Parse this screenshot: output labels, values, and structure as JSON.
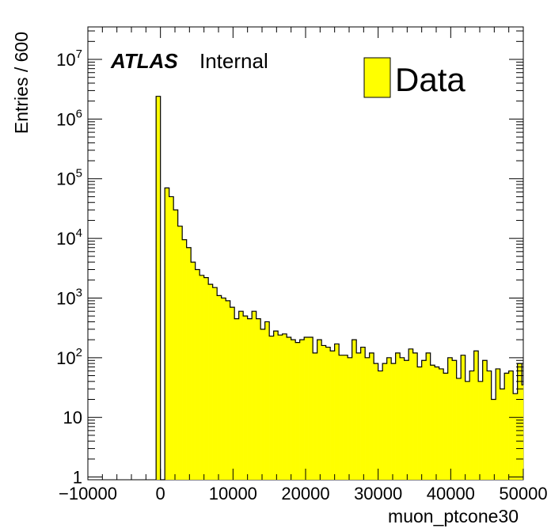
{
  "chart_data": {
    "type": "histogram",
    "xlabel": "muon_ptcone30",
    "ylabel": "Entries / 600",
    "xlim": [
      -10000,
      50000
    ],
    "ylim": [
      0.9,
      35000000
    ],
    "yscale": "log",
    "bin_width": 600,
    "fill_color": "#ffff00",
    "line_color": "#000000",
    "grid": false,
    "legend_position": "top-right",
    "x_ticks": [
      -10000,
      0,
      10000,
      20000,
      30000,
      40000,
      50000
    ],
    "x_tick_labels": [
      "−10000",
      "0",
      "10000",
      "20000",
      "30000",
      "40000",
      "50000"
    ],
    "y_ticks": [
      {
        "value": 1,
        "base": "1",
        "exp": ""
      },
      {
        "value": 10,
        "base": "10",
        "exp": ""
      },
      {
        "value": 100,
        "base": "10",
        "exp": "2"
      },
      {
        "value": 1000,
        "base": "10",
        "exp": "3"
      },
      {
        "value": 10000,
        "base": "10",
        "exp": "4"
      },
      {
        "value": 100000,
        "base": "10",
        "exp": "5"
      },
      {
        "value": 1000000,
        "base": "10",
        "exp": "6"
      },
      {
        "value": 10000000,
        "base": "10",
        "exp": "7"
      }
    ],
    "annotation": {
      "bold": "ATLAS",
      "text": "Internal"
    },
    "series": [
      {
        "name": "Data",
        "bin_edges_start": -600,
        "values": [
          2400000,
          0,
          70000,
          50000,
          30000,
          16000,
          9500,
          7000,
          4000,
          3000,
          2400,
          2200,
          1700,
          1500,
          1100,
          1000,
          900,
          700,
          450,
          600,
          500,
          450,
          600,
          450,
          300,
          400,
          230,
          280,
          240,
          250,
          220,
          200,
          180,
          200,
          220,
          220,
          120,
          200,
          160,
          150,
          130,
          170,
          110,
          110,
          100,
          200,
          120,
          150,
          100,
          120,
          80,
          60,
          80,
          100,
          80,
          120,
          100,
          90,
          140,
          120,
          70,
          90,
          120,
          75,
          70,
          65,
          55,
          100,
          90,
          45,
          110,
          40,
          60,
          130,
          40,
          90,
          60,
          20,
          65,
          30,
          55,
          60,
          25,
          80,
          35,
          40
        ]
      }
    ]
  }
}
